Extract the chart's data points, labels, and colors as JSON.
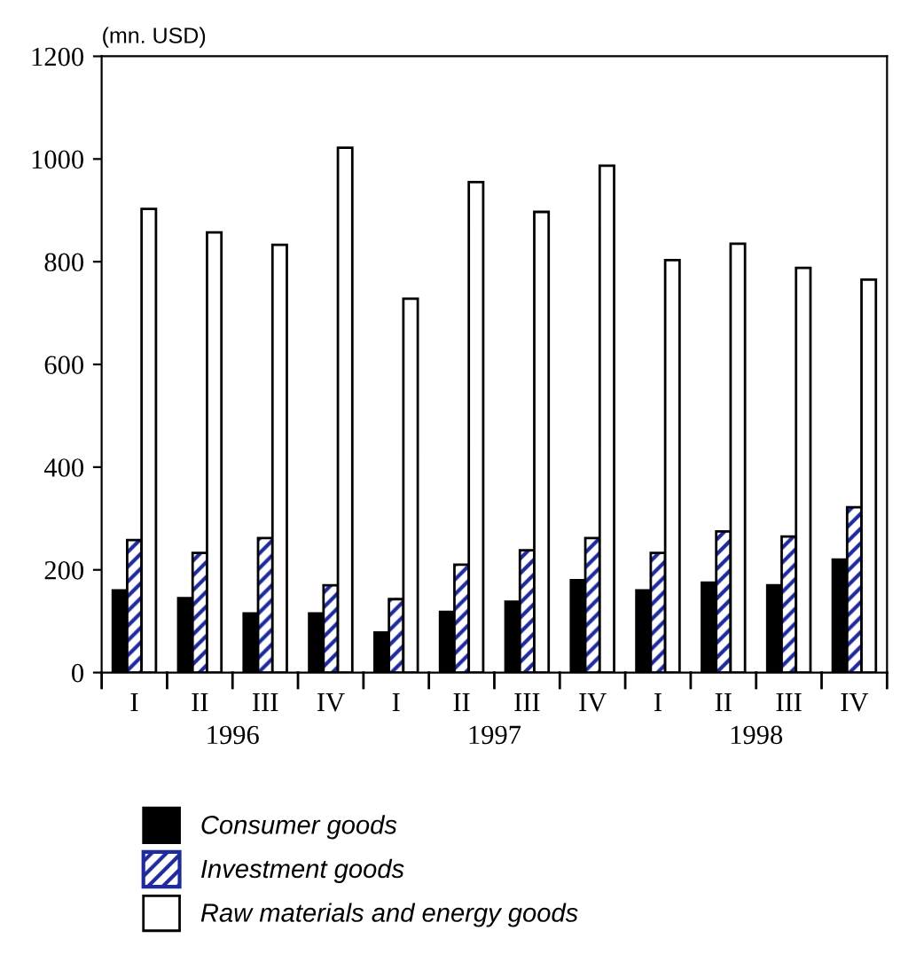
{
  "chart_data": {
    "type": "bar",
    "ylabel": "(mn. USD)",
    "categories": [
      "I",
      "II",
      "III",
      "IV",
      "I",
      "II",
      "III",
      "IV",
      "I",
      "II",
      "III",
      "IV"
    ],
    "annotations": [
      "1996",
      "1997",
      "1998"
    ],
    "series": [
      {
        "name": "Consumer goods",
        "color": "#000000",
        "values": [
          160,
          145,
          115,
          115,
          78,
          118,
          138,
          180,
          160,
          175,
          170,
          220
        ]
      },
      {
        "name": "Investment goods",
        "color": "#1f2a9c",
        "values": [
          258,
          233,
          262,
          170,
          143,
          210,
          238,
          262,
          233,
          275,
          265,
          322
        ]
      },
      {
        "name": "Raw materials and energy goods",
        "color": "#ffffff",
        "values": [
          903,
          857,
          833,
          1022,
          728,
          955,
          897,
          987,
          803,
          835,
          788,
          765
        ]
      }
    ],
    "ylim": [
      0,
      1200
    ],
    "yticks": [
      0,
      200,
      400,
      600,
      800,
      1000,
      1200
    ],
    "grid": false,
    "legend": "bottom"
  }
}
